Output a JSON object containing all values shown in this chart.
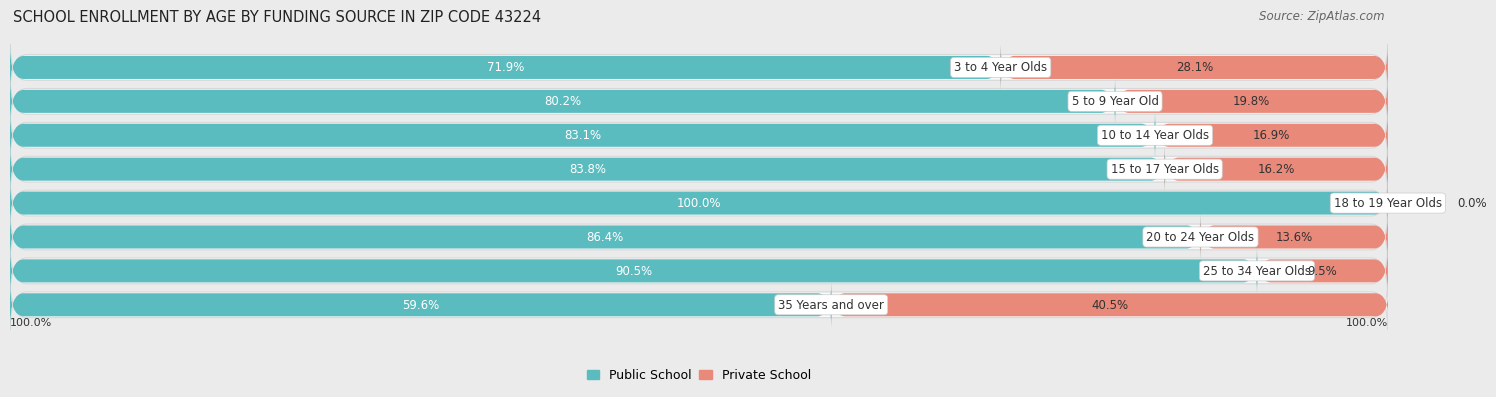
{
  "title": "SCHOOL ENROLLMENT BY AGE BY FUNDING SOURCE IN ZIP CODE 43224",
  "source": "Source: ZipAtlas.com",
  "categories": [
    "3 to 4 Year Olds",
    "5 to 9 Year Old",
    "10 to 14 Year Olds",
    "15 to 17 Year Olds",
    "18 to 19 Year Olds",
    "20 to 24 Year Olds",
    "25 to 34 Year Olds",
    "35 Years and over"
  ],
  "public_pct": [
    71.9,
    80.2,
    83.1,
    83.8,
    100.0,
    86.4,
    90.5,
    59.6
  ],
  "private_pct": [
    28.1,
    19.8,
    16.9,
    16.2,
    0.0,
    13.6,
    9.5,
    40.5
  ],
  "public_color": "#5bbcbf",
  "private_color": "#e8897a",
  "background_color": "#ebebeb",
  "bar_bg_color": "#f8f8f8",
  "row_bg_color": "#f0f0f0",
  "label_color_white": "#ffffff",
  "label_color_dark": "#333333",
  "title_fontsize": 10.5,
  "source_fontsize": 8.5,
  "legend_fontsize": 9,
  "bar_label_fontsize": 8.5,
  "category_fontsize": 8.5,
  "axis_label_fontsize": 8,
  "bar_height": 0.68,
  "total_width": 100,
  "fig_width": 14.06,
  "fig_height": 3.77
}
